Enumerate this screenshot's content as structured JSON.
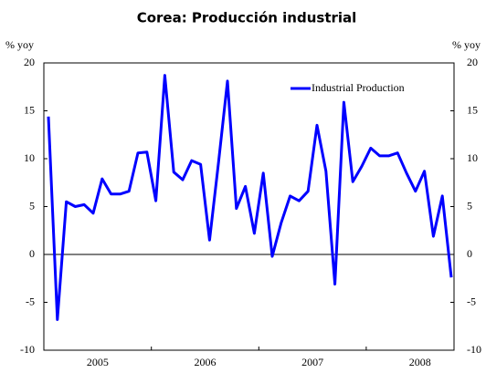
{
  "chart_data": {
    "type": "line",
    "title": "Corea: Producción industrial",
    "y_label": "% yoy",
    "y2_label": "% yoy",
    "x_labels": [
      "2005",
      "2006",
      "2007",
      "2008"
    ],
    "series": [
      {
        "name": "Industrial Production",
        "color": "#0000ff",
        "values": [
          14.4,
          -6.8,
          5.5,
          5.0,
          5.2,
          4.3,
          7.9,
          6.3,
          6.3,
          6.6,
          10.6,
          10.7,
          5.6,
          18.7,
          8.6,
          7.8,
          9.8,
          9.4,
          1.5,
          9.6,
          18.1,
          4.8,
          7.1,
          2.2,
          8.5,
          -0.2,
          3.3,
          6.1,
          5.6,
          6.6,
          13.5,
          8.7,
          -3.1,
          15.9,
          7.6,
          9.2,
          11.1,
          10.3,
          10.3,
          10.6,
          8.5,
          6.6,
          8.7,
          1.9,
          6.1,
          -2.4
        ]
      }
    ],
    "ylim": [
      -10,
      20
    ],
    "yticks": [
      -10,
      -5,
      0,
      5,
      10,
      15,
      20
    ],
    "y2lim": [
      -10,
      20
    ],
    "y2ticks": [
      -10,
      -5,
      0,
      5,
      10,
      15,
      20
    ],
    "legend": "upper right"
  }
}
